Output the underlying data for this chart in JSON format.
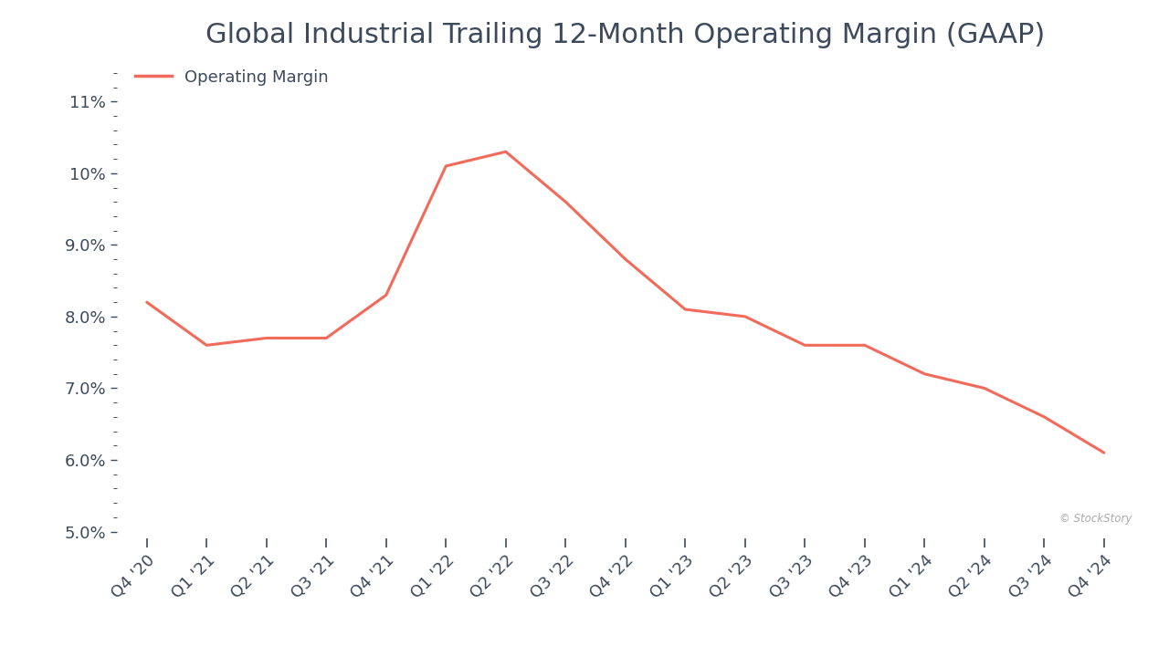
{
  "title": "Global Industrial Trailing 12-Month Operating Margin (GAAP)",
  "legend_label": "Operating Margin",
  "line_color": "#f26a5a",
  "line_width": 2.2,
  "background_color": "#ffffff",
  "watermark": "© StockStory",
  "x_labels": [
    "Q4 '20",
    "Q1 '21",
    "Q2 '21",
    "Q3 '21",
    "Q4 '21",
    "Q1 '22",
    "Q2 '22",
    "Q3 '22",
    "Q4 '22",
    "Q1 '23",
    "Q2 '23",
    "Q3 '23",
    "Q4 '23",
    "Q1 '24",
    "Q2 '24",
    "Q3 '24",
    "Q4 '24"
  ],
  "y_values": [
    0.082,
    0.076,
    0.077,
    0.077,
    0.083,
    0.101,
    0.103,
    0.096,
    0.088,
    0.081,
    0.08,
    0.076,
    0.076,
    0.072,
    0.07,
    0.066,
    0.061
  ],
  "ylim": [
    0.049,
    0.115
  ],
  "yticks": [
    0.05,
    0.06,
    0.07,
    0.08,
    0.09,
    0.1,
    0.11
  ],
  "ytick_labels": [
    "5.0%",
    "6.0%",
    "7.0%",
    "8.0%",
    "9.0%",
    "10%",
    "11%"
  ],
  "title_fontsize": 22,
  "tick_fontsize": 13,
  "legend_fontsize": 13,
  "text_color": "#3d4a5c",
  "watermark_color": "#aaaaaa"
}
